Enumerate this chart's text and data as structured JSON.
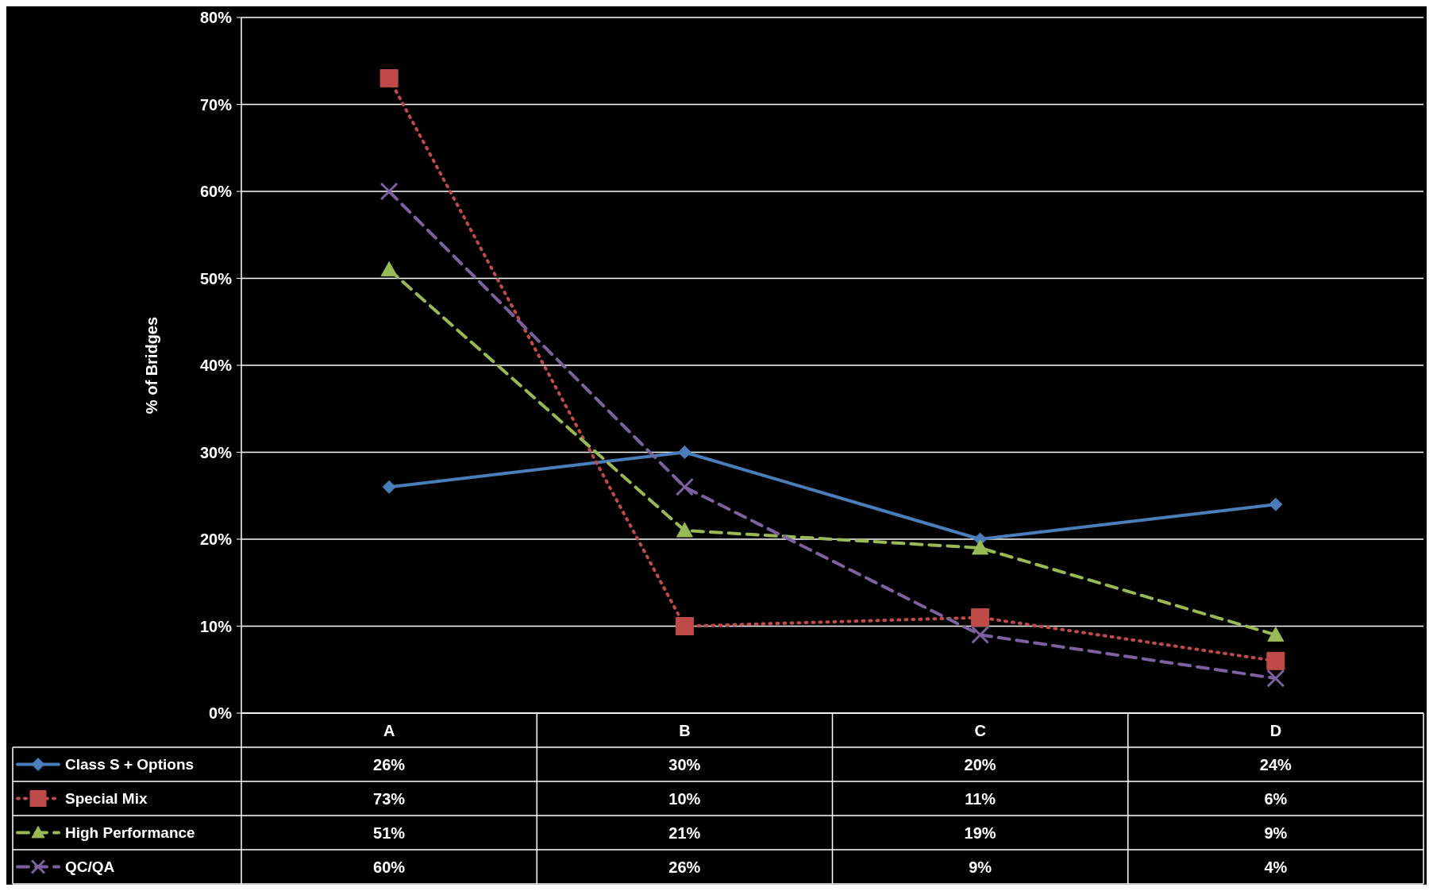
{
  "chart_data": {
    "type": "line",
    "ylabel": "% of Bridges",
    "categories": [
      "A",
      "B",
      "C",
      "D"
    ],
    "ylim": [
      0,
      80
    ],
    "yticks": [
      {
        "value": 0,
        "label": "0%"
      },
      {
        "value": 10,
        "label": "10%"
      },
      {
        "value": 20,
        "label": "20%"
      },
      {
        "value": 30,
        "label": "30%"
      },
      {
        "value": 40,
        "label": "40%"
      },
      {
        "value": 50,
        "label": "50%"
      },
      {
        "value": 60,
        "label": "60%"
      },
      {
        "value": 70,
        "label": "70%"
      },
      {
        "value": 80,
        "label": "80%"
      }
    ],
    "grid": "y",
    "legend": "bottom left",
    "series": [
      {
        "name": "Class S + Options",
        "color": "#4a7ebb",
        "marker": "diamond",
        "line_style": "solid",
        "values": [
          26,
          30,
          20,
          24
        ],
        "value_labels": [
          "26%",
          "30%",
          "20%",
          "24%"
        ]
      },
      {
        "name": "Special Mix",
        "color": "#be4b48",
        "marker": "square",
        "line_style": "dotted",
        "values": [
          73,
          10,
          11,
          6
        ],
        "value_labels": [
          "73%",
          "10%",
          "11%",
          "6%"
        ]
      },
      {
        "name": "High Performance",
        "color": "#98b954",
        "marker": "triangle",
        "line_style": "dashed",
        "values": [
          51,
          21,
          19,
          9
        ],
        "value_labels": [
          "51%",
          "21%",
          "19%",
          "9%"
        ]
      },
      {
        "name": "QC/QA",
        "color": "#7d60a0",
        "marker": "cross",
        "line_style": "dashed",
        "values": [
          60,
          26,
          9,
          4
        ],
        "value_labels": [
          "60%",
          "26%",
          "9%",
          "4%"
        ]
      }
    ]
  }
}
